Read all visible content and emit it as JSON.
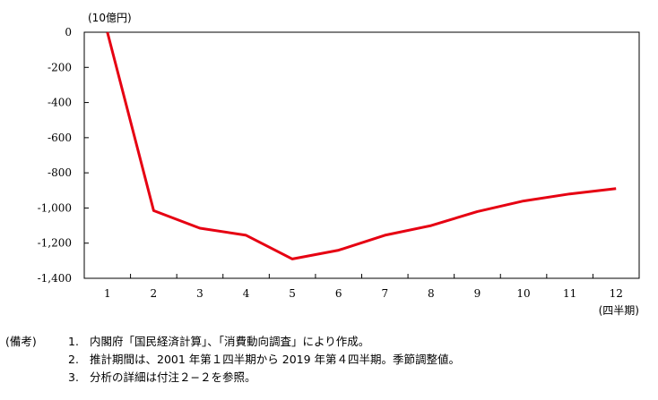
{
  "chart_data": {
    "type": "line",
    "title": "",
    "ylabel": "(10億円)",
    "xlabel": "(四半期)",
    "x": [
      1,
      2,
      3,
      4,
      5,
      6,
      7,
      8,
      9,
      10,
      11,
      12
    ],
    "series": [
      {
        "values": [
          0,
          -1015,
          -1115,
          -1155,
          -1290,
          -1240,
          -1155,
          -1100,
          -1020,
          -960,
          -920,
          -890
        ],
        "color": "#e60012"
      }
    ],
    "ylim": [
      -1400,
      0
    ],
    "yticks": [
      0,
      -200,
      -400,
      -600,
      -800,
      -1000,
      -1200,
      -1400
    ],
    "ytick_labels": [
      "0",
      "-200",
      "-400",
      "-600",
      "-800",
      "-1,000",
      "-1,200",
      "-1,400"
    ],
    "xtick_labels": [
      "1",
      "2",
      "3",
      "4",
      "5",
      "6",
      "7",
      "8",
      "9",
      "10",
      "11",
      "12"
    ],
    "grid": false,
    "legend": "none"
  },
  "notes": {
    "heading": "(備考)",
    "items": [
      {
        "num": "1.",
        "text": "内閣府「国民経済計算」、「消費動向調査」により作成。"
      },
      {
        "num": "2.",
        "text": "推計期間は、2001 年第１四半期から 2019 年第４四半期。季節調整値。"
      },
      {
        "num": "3.",
        "text": "分析の詳細は付注２−２を参照。"
      }
    ]
  }
}
